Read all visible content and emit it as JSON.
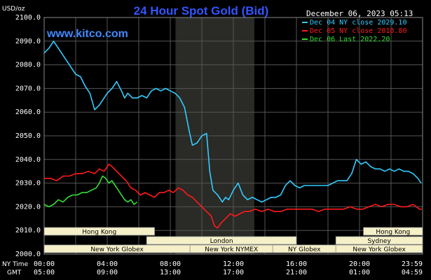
{
  "header": {
    "unit_label": "USD/oz",
    "title": "24 Hour Spot Gold (Bid)",
    "timestamp": "December 06, 2023 05:13",
    "watermark": "www.kitco.com"
  },
  "legend": [
    {
      "label": "Dec 04 NY close 2029.10",
      "color": "#33ccff"
    },
    {
      "label": "Dec 05 NY close 2018.80",
      "color": "#ff1a1a"
    },
    {
      "label": "Dec 06 Last 2022.20",
      "color": "#33dd33"
    }
  ],
  "colors": {
    "background": "#000000",
    "grid": "#555555",
    "title": "#3355ff",
    "watermark": "#4488ff",
    "axis_text": "#ffffff",
    "band_fill": "#2a2a26",
    "session_fill": "#f5f0c8",
    "session_text": "#000000"
  },
  "x_axis": {
    "row_labels": [
      "NY Time",
      "GMT"
    ],
    "ny_time_ticks": [
      "00:00",
      "04:00",
      "08:00",
      "12:00",
      "16:00",
      "20:00",
      "23:59"
    ],
    "gmt_ticks": [
      "05:00",
      "09:00",
      "13:00",
      "17:00",
      "21:00",
      "01:00",
      "04:59"
    ]
  },
  "sessions": [
    {
      "label": "Hong Kong",
      "row": 0,
      "start": 0,
      "end": 7
    },
    {
      "label": "Hong Kong",
      "row": 0,
      "start": 20.25,
      "end": 24
    },
    {
      "label": "London",
      "row": 1,
      "start": 6.5,
      "end": 16
    },
    {
      "label": "Sydney",
      "row": 1,
      "start": 18.5,
      "end": 24
    },
    {
      "label": "New York Globex",
      "row": 2,
      "start": 0,
      "end": 9.25
    },
    {
      "label": "New York NYMEX",
      "row": 2,
      "start": 9.25,
      "end": 14.5
    },
    {
      "label": "NY Globex",
      "row": 2,
      "start": 14.5,
      "end": 18.5
    },
    {
      "label": "New York Globex",
      "row": 2,
      "start": 18.5,
      "end": 24
    }
  ],
  "chart_data": {
    "type": "line",
    "title": "24 Hour Spot Gold (Bid)",
    "ylabel": "USD/oz",
    "ylim": [
      2000,
      2100
    ],
    "y_ticks": [
      "2000.0",
      "2010.0",
      "2020.0",
      "2030.0",
      "2040.0",
      "2050.0",
      "2060.0",
      "2070.0",
      "2080.0",
      "2090.0",
      "2100.0"
    ],
    "xlim": [
      0,
      24
    ],
    "x_unit": "hours NY time",
    "nymex_band": [
      8.33,
      13.33
    ],
    "series": [
      {
        "name": "Dec 04 NY close 2029.10",
        "color": "#33ccff",
        "x": [
          0,
          0.3,
          0.6,
          0.9,
          1.2,
          1.6,
          2.0,
          2.3,
          2.6,
          2.9,
          3.2,
          3.5,
          3.7,
          4.0,
          4.3,
          4.6,
          4.9,
          5.1,
          5.3,
          5.6,
          5.9,
          6.2,
          6.5,
          6.8,
          7.1,
          7.4,
          7.7,
          8.0,
          8.3,
          8.6,
          8.9,
          9.2,
          9.4,
          9.7,
          10.0,
          10.3,
          10.5,
          10.7,
          11.0,
          11.3,
          11.5,
          11.7,
          12.0,
          12.3,
          12.6,
          12.9,
          13.2,
          13.5,
          13.8,
          14.1,
          14.4,
          14.7,
          15.0,
          15.3,
          15.6,
          15.9,
          16.2,
          16.5,
          16.8,
          17.1,
          17.4,
          17.7,
          18.0,
          18.3,
          18.6,
          18.9,
          19.2,
          19.5,
          19.8,
          20.1,
          20.4,
          20.7,
          21.0,
          21.3,
          21.6,
          21.9,
          22.2,
          22.5,
          22.8,
          23.1,
          23.4,
          23.7,
          23.9
        ],
        "values": [
          2085,
          2087,
          2090,
          2087,
          2084,
          2080,
          2076,
          2075,
          2071,
          2068,
          2061,
          2063,
          2065,
          2068,
          2070,
          2073,
          2069,
          2066,
          2068,
          2066,
          2066,
          2067,
          2066,
          2069,
          2070,
          2069,
          2070,
          2069,
          2068,
          2066,
          2062,
          2052,
          2046,
          2047,
          2050,
          2051,
          2035,
          2027,
          2025,
          2022,
          2024,
          2023,
          2027,
          2030,
          2025,
          2023,
          2024,
          2023,
          2022,
          2023,
          2024,
          2024,
          2025,
          2029,
          2031,
          2029,
          2028,
          2029,
          2029,
          2029,
          2029,
          2029,
          2029,
          2030,
          2031,
          2031,
          2031,
          2034,
          2040,
          2038,
          2039,
          2037,
          2036,
          2036,
          2035,
          2036,
          2035,
          2036,
          2035,
          2035,
          2034,
          2032,
          2030
        ]
      },
      {
        "name": "Dec 05 NY close 2018.80",
        "color": "#ff1a1a",
        "x": [
          0,
          0.4,
          0.8,
          1.2,
          1.6,
          2.0,
          2.4,
          2.8,
          3.2,
          3.5,
          3.8,
          4.1,
          4.3,
          4.6,
          4.9,
          5.2,
          5.5,
          5.8,
          6.1,
          6.4,
          6.7,
          7.0,
          7.3,
          7.6,
          7.9,
          8.2,
          8.5,
          8.8,
          9.1,
          9.4,
          9.7,
          10.0,
          10.3,
          10.6,
          10.8,
          11.0,
          11.2,
          11.5,
          11.8,
          12.1,
          12.4,
          12.7,
          13.0,
          13.4,
          13.8,
          14.2,
          14.6,
          15.0,
          15.4,
          15.8,
          16.2,
          16.6,
          17.0,
          17.4,
          17.8,
          18.2,
          18.6,
          19.0,
          19.4,
          19.8,
          20.2,
          20.6,
          21.0,
          21.4,
          21.8,
          22.2,
          22.6,
          23.0,
          23.4,
          23.8,
          23.95
        ],
        "values": [
          2032,
          2032,
          2031,
          2033,
          2033,
          2034,
          2034,
          2035,
          2034,
          2036,
          2035,
          2038,
          2037,
          2035,
          2033,
          2031,
          2028,
          2027,
          2025,
          2026,
          2025,
          2024,
          2026,
          2026,
          2027,
          2026,
          2028,
          2027,
          2025,
          2024,
          2022,
          2020,
          2018,
          2016,
          2012,
          2011,
          2013,
          2015,
          2017,
          2016,
          2017,
          2018,
          2018,
          2019,
          2018,
          2019,
          2018,
          2018,
          2019,
          2019,
          2019,
          2019,
          2019,
          2018,
          2019,
          2019,
          2019,
          2019,
          2020,
          2019,
          2019,
          2020,
          2021,
          2020,
          2021,
          2021,
          2020,
          2020,
          2021,
          2019,
          2019
        ]
      },
      {
        "name": "Dec 06 Last 2022.20",
        "color": "#33dd33",
        "x": [
          0,
          0.3,
          0.6,
          0.9,
          1.2,
          1.5,
          1.8,
          2.1,
          2.4,
          2.7,
          3.0,
          3.3,
          3.5,
          3.7,
          3.9,
          4.1,
          4.3,
          4.5,
          4.7,
          4.9,
          5.1,
          5.3,
          5.5,
          5.7,
          5.9
        ],
        "values": [
          2021,
          2020,
          2021,
          2023,
          2022,
          2024,
          2025,
          2025,
          2026,
          2026,
          2027,
          2028,
          2030,
          2033,
          2032,
          2030,
          2031,
          2029,
          2027,
          2025,
          2023,
          2022,
          2023,
          2021,
          2022
        ]
      }
    ]
  }
}
